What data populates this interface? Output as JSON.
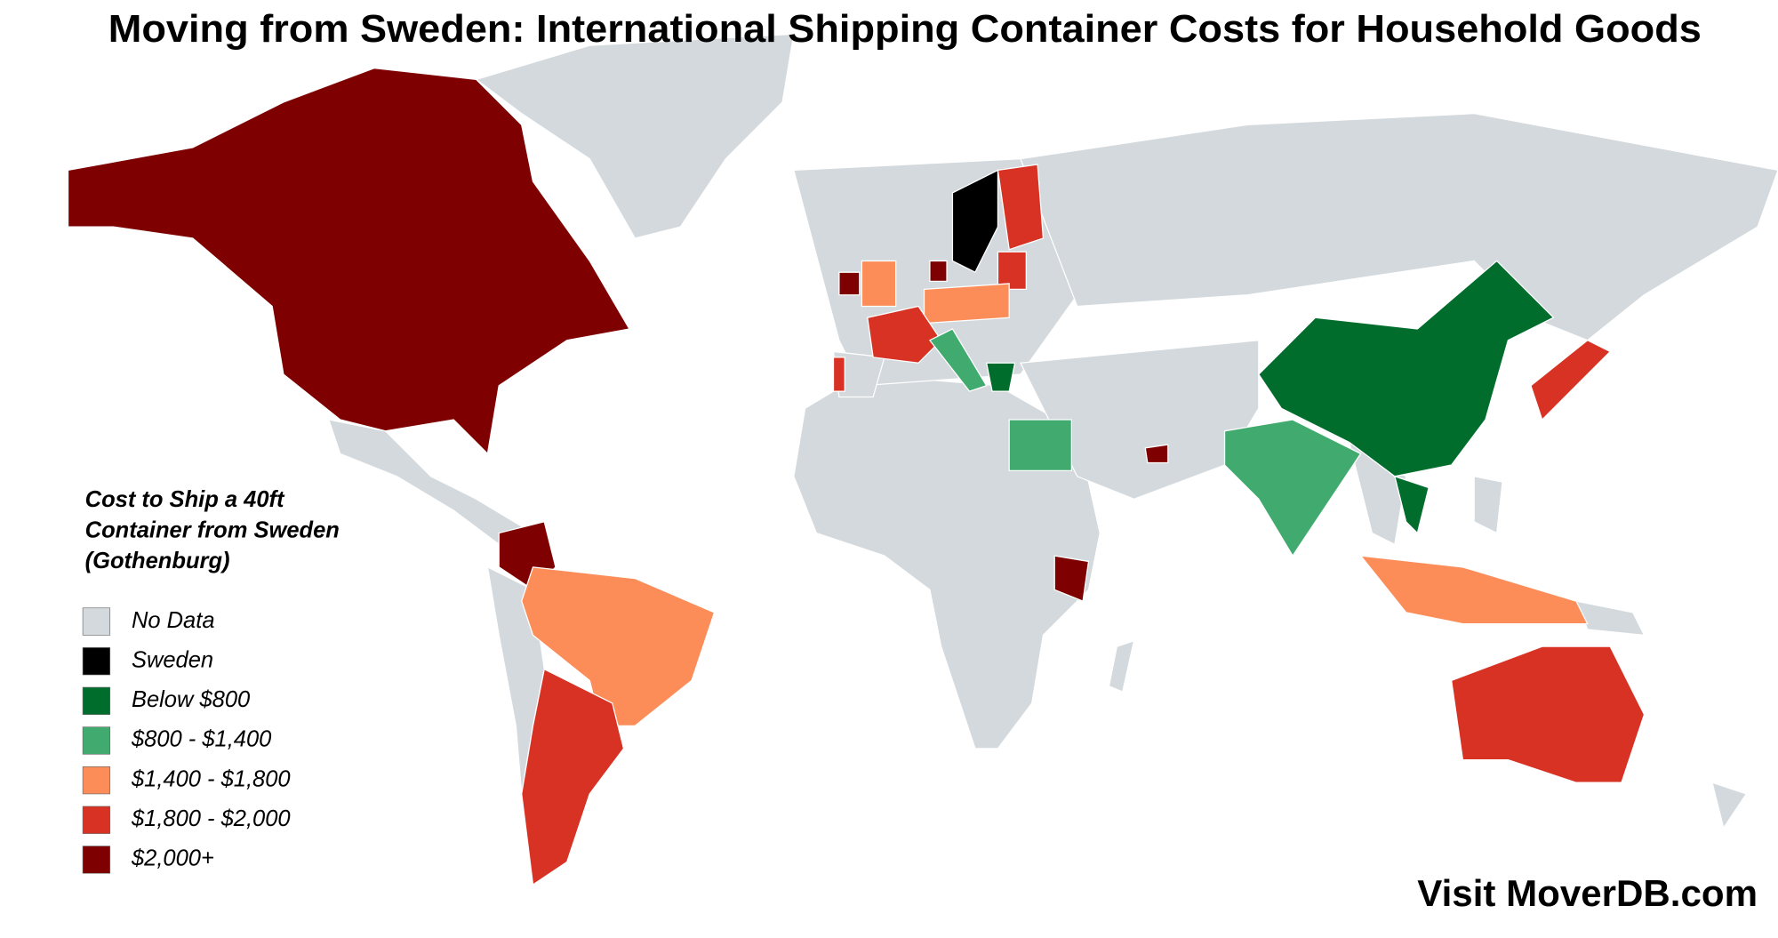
{
  "title": "Moving from Sweden: International Shipping Container Costs for Household Goods",
  "legend": {
    "title": [
      "Cost to Ship a 40ft",
      "Container from Sweden",
      "(Gothenburg)"
    ],
    "items": [
      {
        "label": "No Data",
        "color": "#d3d9dc"
      },
      {
        "label": "Sweden",
        "color": "#000000"
      },
      {
        "label": "Below $800",
        "color": "#006d2c"
      },
      {
        "label": "$800 - $1,400",
        "color": "#41ab6f"
      },
      {
        "label": "$1,400 - $1,800",
        "color": "#fc8d59"
      },
      {
        "label": "$1,800 - $2,000",
        "color": "#d73223"
      },
      {
        "label": "$2,000+",
        "color": "#7f0000"
      }
    ]
  },
  "footer": "Visit MoverDB.com"
}
